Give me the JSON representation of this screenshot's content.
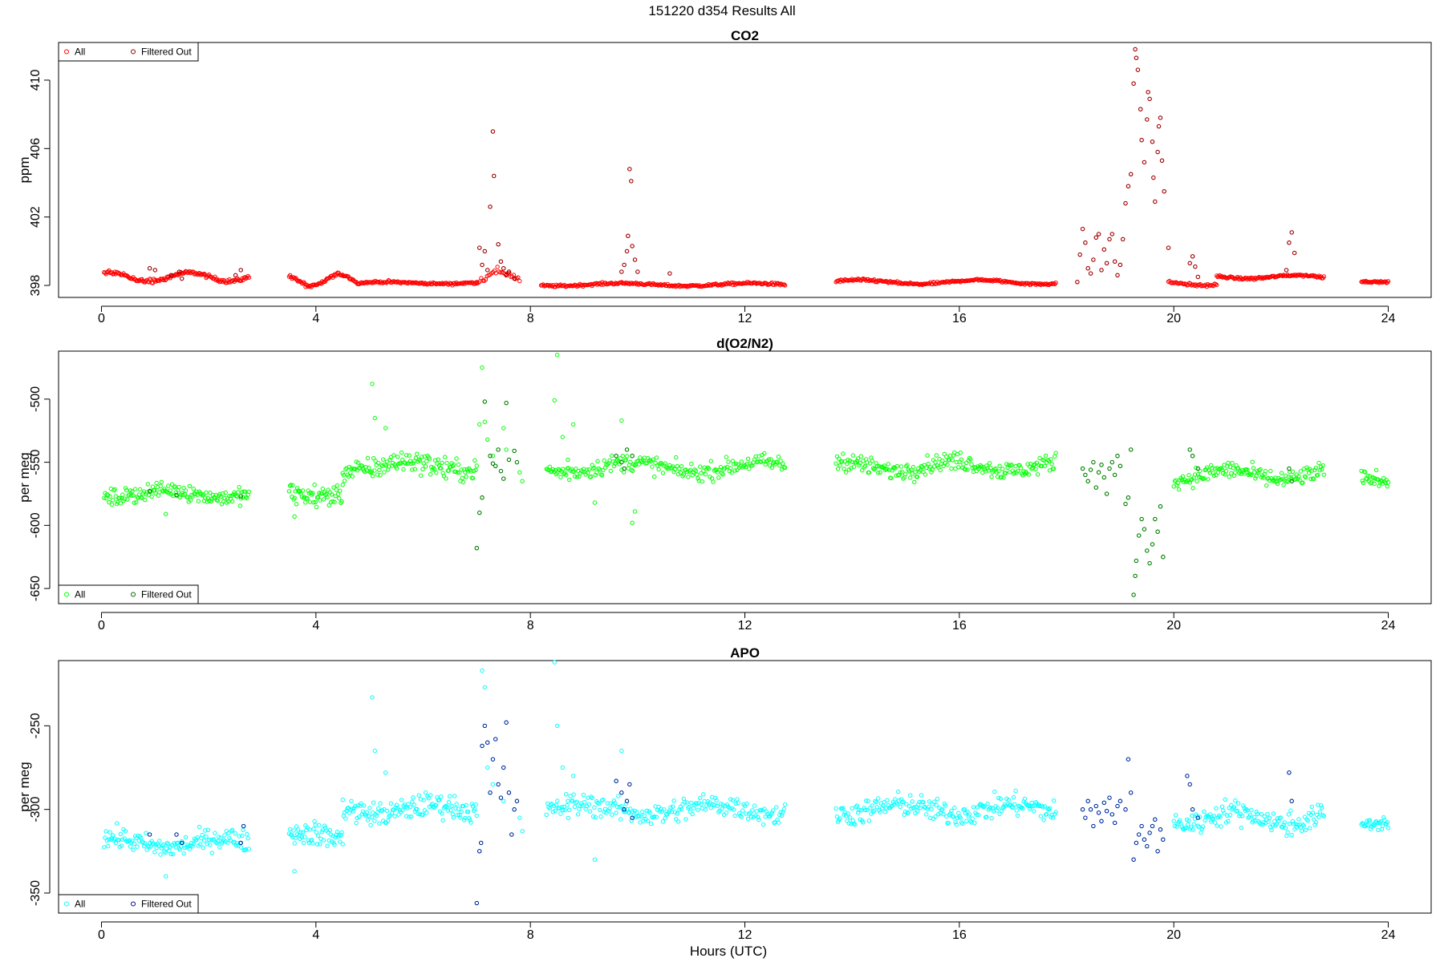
{
  "overall_title": "151220   d354   Results All",
  "x_axis_label": "Hours (UTC)",
  "x_ticks": [
    "0",
    "4",
    "8",
    "12",
    "16",
    "20",
    "24"
  ],
  "colors": {
    "co2_all": "#ff0000",
    "co2_filtered": "#8b0000",
    "o2_all": "#00ff00",
    "o2_filtered": "#006400",
    "apo_all": "#00ffff",
    "apo_filtered": "#00008b"
  },
  "chart_data": [
    {
      "type": "scatter",
      "title": "CO2",
      "ylabel": "ppm",
      "xlim": [
        -0.8,
        24.8
      ],
      "ylim": [
        397.3,
        412.2
      ],
      "y_ticks": [
        "398",
        "402",
        "406",
        "410"
      ],
      "legend": {
        "placement": "top-left",
        "entries": [
          "All",
          "Filtered Out"
        ]
      },
      "segments": [
        {
          "x": [
            0.05,
            2.75
          ],
          "base": 398.5,
          "amp": 0.25,
          "noise": 0.08,
          "n": 150,
          "freq": 2.1
        },
        {
          "x": [
            3.5,
            4.75
          ],
          "base": 398.3,
          "amp": 0.35,
          "noise": 0.08,
          "n": 70,
          "freq": 3.0
        },
        {
          "x": [
            4.75,
            7.0
          ],
          "base": 398.15,
          "amp": 0.05,
          "noise": 0.05,
          "n": 120,
          "freq": 1.5
        },
        {
          "x": [
            7.0,
            7.8
          ],
          "base": 398.5,
          "amp": 0.3,
          "noise": 0.15,
          "n": 30,
          "freq": 3.0
        },
        {
          "x": [
            8.2,
            12.75
          ],
          "base": 398.05,
          "amp": 0.08,
          "noise": 0.05,
          "n": 240,
          "freq": 1.3
        },
        {
          "x": [
            13.7,
            17.8
          ],
          "base": 398.2,
          "amp": 0.12,
          "noise": 0.05,
          "n": 220,
          "freq": 1.4
        },
        {
          "x": [
            19.9,
            20.8
          ],
          "base": 398.1,
          "amp": 0.1,
          "noise": 0.05,
          "n": 45,
          "freq": 2.0
        },
        {
          "x": [
            20.8,
            22.8
          ],
          "base": 398.5,
          "amp": 0.1,
          "noise": 0.05,
          "n": 110,
          "freq": 1.7
        },
        {
          "x": [
            23.5,
            24.0
          ],
          "base": 398.25,
          "amp": 0.05,
          "noise": 0.03,
          "n": 30,
          "freq": 1.0
        }
      ],
      "filtered_points": [
        [
          0.9,
          399.0
        ],
        [
          1.0,
          398.9
        ],
        [
          1.3,
          398.6
        ],
        [
          1.45,
          398.8
        ],
        [
          1.5,
          398.4
        ],
        [
          2.5,
          398.6
        ],
        [
          2.6,
          398.9
        ],
        [
          7.05,
          400.2
        ],
        [
          7.1,
          399.2
        ],
        [
          7.15,
          400.0
        ],
        [
          7.2,
          398.9
        ],
        [
          7.25,
          402.6
        ],
        [
          7.3,
          407.0
        ],
        [
          7.32,
          404.4
        ],
        [
          7.4,
          400.4
        ],
        [
          7.45,
          399.4
        ],
        [
          7.5,
          399.0
        ],
        [
          7.55,
          398.6
        ],
        [
          7.6,
          398.8
        ],
        [
          7.7,
          398.4
        ],
        [
          9.7,
          398.8
        ],
        [
          9.75,
          399.2
        ],
        [
          9.8,
          400.0
        ],
        [
          9.82,
          400.9
        ],
        [
          9.85,
          404.8
        ],
        [
          9.88,
          404.1
        ],
        [
          9.9,
          400.3
        ],
        [
          9.95,
          399.5
        ],
        [
          10.0,
          398.8
        ],
        [
          10.6,
          398.7
        ],
        [
          18.2,
          398.2
        ],
        [
          18.25,
          399.8
        ],
        [
          18.3,
          401.3
        ],
        [
          18.35,
          400.5
        ],
        [
          18.4,
          399.0
        ],
        [
          18.45,
          398.7
        ],
        [
          18.5,
          399.5
        ],
        [
          18.55,
          400.8
        ],
        [
          18.6,
          401.0
        ],
        [
          18.65,
          398.9
        ],
        [
          18.7,
          400.1
        ],
        [
          18.75,
          399.3
        ],
        [
          18.8,
          400.7
        ],
        [
          18.85,
          401.0
        ],
        [
          18.9,
          399.4
        ],
        [
          18.95,
          398.6
        ],
        [
          19.0,
          399.2
        ],
        [
          19.05,
          400.7
        ],
        [
          19.1,
          402.8
        ],
        [
          19.15,
          403.8
        ],
        [
          19.2,
          404.5
        ],
        [
          19.25,
          409.8
        ],
        [
          19.28,
          411.8
        ],
        [
          19.3,
          411.3
        ],
        [
          19.33,
          410.6
        ],
        [
          19.38,
          408.3
        ],
        [
          19.4,
          406.5
        ],
        [
          19.45,
          405.2
        ],
        [
          19.5,
          407.7
        ],
        [
          19.52,
          409.3
        ],
        [
          19.55,
          408.9
        ],
        [
          19.6,
          406.4
        ],
        [
          19.62,
          404.3
        ],
        [
          19.65,
          402.9
        ],
        [
          19.7,
          405.8
        ],
        [
          19.72,
          407.3
        ],
        [
          19.75,
          407.8
        ],
        [
          19.78,
          405.3
        ],
        [
          19.82,
          403.5
        ],
        [
          19.9,
          400.2
        ],
        [
          20.3,
          399.3
        ],
        [
          20.35,
          399.7
        ],
        [
          20.4,
          399.1
        ],
        [
          20.45,
          398.5
        ],
        [
          22.1,
          398.9
        ],
        [
          22.15,
          400.5
        ],
        [
          22.2,
          401.1
        ],
        [
          22.25,
          399.9
        ]
      ]
    },
    {
      "type": "scatter",
      "title": "d(O2/N2)",
      "ylabel": "per meg",
      "xlim": [
        -0.8,
        24.8
      ],
      "ylim": [
        -662,
        -462
      ],
      "y_ticks": [
        "-650",
        "-600",
        "-550",
        "-500"
      ],
      "legend": {
        "placement": "bottom-left",
        "entries": [
          "All",
          "Filtered Out"
        ]
      },
      "segments": [
        {
          "x": [
            0.05,
            2.75
          ],
          "base": -575,
          "amp": 3,
          "noise": 4.5,
          "n": 150,
          "freq": 1.5
        },
        {
          "x": [
            3.5,
            4.5
          ],
          "base": -572,
          "amp": 5,
          "noise": 6,
          "n": 60,
          "freq": 1.0
        },
        {
          "x": [
            4.5,
            7.0
          ],
          "base": -553,
          "amp": 4,
          "noise": 6,
          "n": 140,
          "freq": 1.5
        },
        {
          "x": [
            8.3,
            12.75
          ],
          "base": -554,
          "amp": 4,
          "noise": 5,
          "n": 220,
          "freq": 1.3
        },
        {
          "x": [
            13.7,
            17.8
          ],
          "base": -553,
          "amp": 4,
          "noise": 5,
          "n": 220,
          "freq": 1.5
        },
        {
          "x": [
            20.0,
            22.8
          ],
          "base": -560,
          "amp": 4,
          "noise": 5,
          "n": 150,
          "freq": 1.6
        },
        {
          "x": [
            23.5,
            24.0
          ],
          "base": -565,
          "amp": 3,
          "noise": 4,
          "n": 30,
          "freq": 1.0
        }
      ],
      "extra_points": [
        [
          5.05,
          -488
        ],
        [
          5.1,
          -515
        ],
        [
          5.3,
          -523
        ],
        [
          3.6,
          -593
        ],
        [
          1.2,
          -591
        ],
        [
          7.05,
          -520
        ],
        [
          7.1,
          -475
        ],
        [
          7.15,
          -518
        ],
        [
          7.2,
          -532
        ],
        [
          7.3,
          -545
        ],
        [
          7.5,
          -523
        ],
        [
          7.55,
          -540
        ],
        [
          7.8,
          -558
        ],
        [
          7.85,
          -565
        ],
        [
          8.45,
          -501
        ],
        [
          8.5,
          -465
        ],
        [
          8.6,
          -530
        ],
        [
          8.7,
          -548
        ],
        [
          8.8,
          -520
        ],
        [
          9.2,
          -582
        ],
        [
          9.7,
          -517
        ],
        [
          9.9,
          -598
        ],
        [
          9.95,
          -589
        ]
      ],
      "filtered_points": [
        [
          0.9,
          -573
        ],
        [
          1.4,
          -576
        ],
        [
          2.6,
          -577
        ],
        [
          7.0,
          -618
        ],
        [
          7.05,
          -590
        ],
        [
          7.1,
          -578
        ],
        [
          7.15,
          -502
        ],
        [
          7.25,
          -545
        ],
        [
          7.3,
          -551
        ],
        [
          7.35,
          -553
        ],
        [
          7.4,
          -540
        ],
        [
          7.45,
          -557
        ],
        [
          7.5,
          -563
        ],
        [
          7.55,
          -503
        ],
        [
          7.6,
          -548
        ],
        [
          7.7,
          -541
        ],
        [
          7.75,
          -550
        ],
        [
          9.6,
          -545
        ],
        [
          9.7,
          -550
        ],
        [
          9.75,
          -555
        ],
        [
          9.8,
          -540
        ],
        [
          9.9,
          -545
        ],
        [
          18.3,
          -555
        ],
        [
          18.35,
          -560
        ],
        [
          18.4,
          -565
        ],
        [
          18.45,
          -556
        ],
        [
          18.5,
          -550
        ],
        [
          18.55,
          -570
        ],
        [
          18.6,
          -558
        ],
        [
          18.65,
          -552
        ],
        [
          18.7,
          -562
        ],
        [
          18.75,
          -575
        ],
        [
          18.8,
          -555
        ],
        [
          18.85,
          -550
        ],
        [
          18.9,
          -560
        ],
        [
          18.95,
          -545
        ],
        [
          19.0,
          -553
        ],
        [
          19.1,
          -583
        ],
        [
          19.15,
          -578
        ],
        [
          19.2,
          -540
        ],
        [
          19.25,
          -655
        ],
        [
          19.28,
          -640
        ],
        [
          19.3,
          -628
        ],
        [
          19.35,
          -608
        ],
        [
          19.4,
          -595
        ],
        [
          19.45,
          -603
        ],
        [
          19.5,
          -620
        ],
        [
          19.55,
          -630
        ],
        [
          19.6,
          -615
        ],
        [
          19.65,
          -595
        ],
        [
          19.7,
          -605
        ],
        [
          19.75,
          -585
        ],
        [
          19.8,
          -625
        ],
        [
          20.3,
          -540
        ],
        [
          20.35,
          -545
        ],
        [
          20.45,
          -555
        ],
        [
          22.15,
          -555
        ],
        [
          22.2,
          -565
        ]
      ]
    },
    {
      "type": "scatter",
      "title": "APO",
      "ylabel": "per meg",
      "xlim": [
        -0.8,
        24.8
      ],
      "ylim": [
        -362,
        -211
      ],
      "y_ticks": [
        "-350",
        "-300",
        "-250"
      ],
      "legend": {
        "placement": "bottom-left",
        "entries": [
          "All",
          "Filtered Out"
        ]
      },
      "segments": [
        {
          "x": [
            0.05,
            2.75
          ],
          "base": -320,
          "amp": 3,
          "noise": 4.5,
          "n": 150,
          "freq": 1.5
        },
        {
          "x": [
            3.5,
            4.5
          ],
          "base": -318,
          "amp": 4,
          "noise": 5,
          "n": 60,
          "freq": 1.0
        },
        {
          "x": [
            4.5,
            7.0
          ],
          "base": -300,
          "amp": 3,
          "noise": 5,
          "n": 140,
          "freq": 1.5
        },
        {
          "x": [
            8.3,
            12.75
          ],
          "base": -300,
          "amp": 3,
          "noise": 5,
          "n": 220,
          "freq": 1.3
        },
        {
          "x": [
            13.7,
            17.8
          ],
          "base": -300,
          "amp": 3,
          "noise": 5,
          "n": 220,
          "freq": 1.5
        },
        {
          "x": [
            20.0,
            22.8
          ],
          "base": -305,
          "amp": 4,
          "noise": 5,
          "n": 150,
          "freq": 1.6
        },
        {
          "x": [
            23.5,
            24.0
          ],
          "base": -310,
          "amp": 2,
          "noise": 3,
          "n": 30,
          "freq": 1.0
        }
      ],
      "extra_points": [
        [
          5.05,
          -233
        ],
        [
          5.1,
          -265
        ],
        [
          5.3,
          -278
        ],
        [
          3.6,
          -337
        ],
        [
          1.2,
          -340
        ],
        [
          7.1,
          -217
        ],
        [
          7.15,
          -227
        ],
        [
          7.2,
          -275
        ],
        [
          7.3,
          -285
        ],
        [
          7.5,
          -295
        ],
        [
          7.8,
          -305
        ],
        [
          7.85,
          -313
        ],
        [
          8.45,
          -212
        ],
        [
          8.5,
          -250
        ],
        [
          8.6,
          -275
        ],
        [
          8.7,
          -295
        ],
        [
          8.8,
          -280
        ],
        [
          9.2,
          -330
        ],
        [
          9.7,
          -265
        ]
      ],
      "filtered_points": [
        [
          0.9,
          -315
        ],
        [
          1.4,
          -315
        ],
        [
          1.5,
          -320
        ],
        [
          2.6,
          -320
        ],
        [
          2.65,
          -310
        ],
        [
          7.0,
          -356
        ],
        [
          7.05,
          -325
        ],
        [
          7.08,
          -320
        ],
        [
          7.1,
          -262
        ],
        [
          7.15,
          -250
        ],
        [
          7.2,
          -260
        ],
        [
          7.25,
          -290
        ],
        [
          7.3,
          -270
        ],
        [
          7.35,
          -258
        ],
        [
          7.4,
          -285
        ],
        [
          7.45,
          -293
        ],
        [
          7.5,
          -275
        ],
        [
          7.55,
          -248
        ],
        [
          7.6,
          -290
        ],
        [
          7.65,
          -315
        ],
        [
          7.7,
          -300
        ],
        [
          7.75,
          -295
        ],
        [
          9.6,
          -283
        ],
        [
          9.7,
          -290
        ],
        [
          9.75,
          -300
        ],
        [
          9.8,
          -295
        ],
        [
          9.85,
          -285
        ],
        [
          9.9,
          -305
        ],
        [
          18.3,
          -300
        ],
        [
          18.35,
          -305
        ],
        [
          18.4,
          -295
        ],
        [
          18.45,
          -300
        ],
        [
          18.5,
          -310
        ],
        [
          18.55,
          -298
        ],
        [
          18.6,
          -302
        ],
        [
          18.65,
          -307
        ],
        [
          18.7,
          -296
        ],
        [
          18.75,
          -301
        ],
        [
          18.8,
          -293
        ],
        [
          18.85,
          -303
        ],
        [
          18.9,
          -308
        ],
        [
          18.95,
          -298
        ],
        [
          19.0,
          -295
        ],
        [
          19.1,
          -300
        ],
        [
          19.15,
          -270
        ],
        [
          19.2,
          -290
        ],
        [
          19.25,
          -330
        ],
        [
          19.3,
          -320
        ],
        [
          19.35,
          -315
        ],
        [
          19.4,
          -310
        ],
        [
          19.45,
          -318
        ],
        [
          19.5,
          -322
        ],
        [
          19.55,
          -314
        ],
        [
          19.6,
          -310
        ],
        [
          19.65,
          -306
        ],
        [
          19.7,
          -325
        ],
        [
          19.75,
          -312
        ],
        [
          19.8,
          -318
        ],
        [
          20.25,
          -280
        ],
        [
          20.3,
          -285
        ],
        [
          20.35,
          -300
        ],
        [
          20.45,
          -305
        ],
        [
          22.15,
          -278
        ],
        [
          22.2,
          -295
        ]
      ]
    }
  ]
}
